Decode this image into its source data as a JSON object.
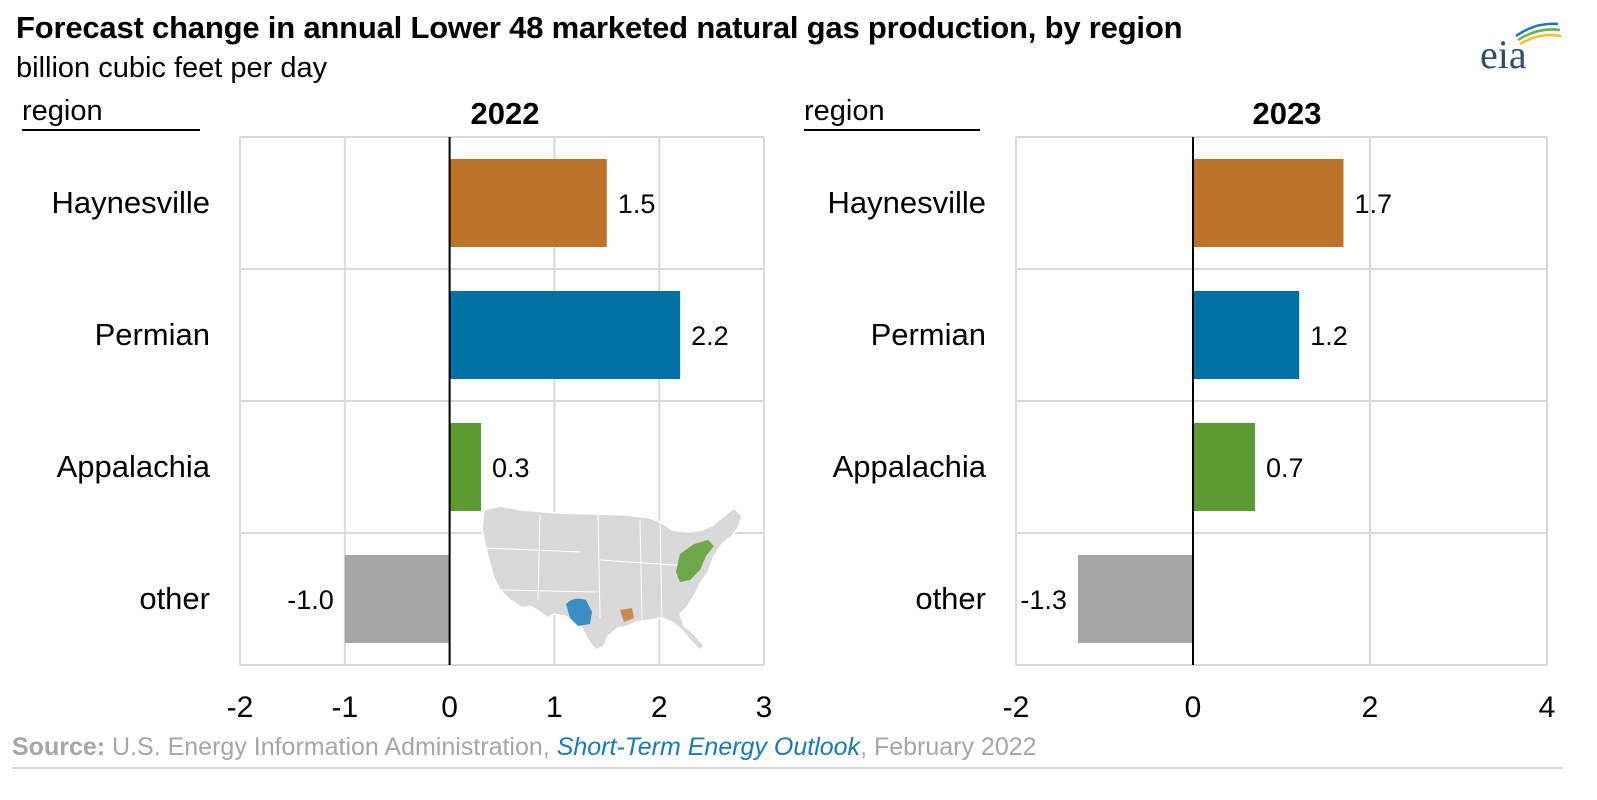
{
  "header": {
    "title": "Forecast change in annual Lower 48 marketed natural gas production, by region",
    "subtitle": "billion cubic feet per day",
    "logo_text": "eia"
  },
  "source": {
    "label": "Source:",
    "text_before": " U.S. Energy Information Administration, ",
    "link_text": "Short-Term Energy Outlook",
    "text_after": ", February 2022"
  },
  "chart_data": [
    {
      "type": "bar",
      "orientation": "horizontal",
      "title": "2022",
      "category_header": "region",
      "categories": [
        "Haynesville",
        "Permian",
        "Appalachia",
        "other"
      ],
      "values": [
        1.5,
        2.2,
        0.3,
        -1.0
      ],
      "value_labels": [
        "1.5",
        "2.2",
        "0.3",
        "-1.0"
      ],
      "colors": [
        "#bb732b",
        "#0070a3",
        "#5c9a32",
        "#a6a6a6"
      ],
      "xlim": [
        -2,
        3
      ],
      "xticks": [
        "-2",
        "-1",
        "0",
        "1",
        "2",
        "3"
      ],
      "grid": true,
      "inset": "map of Lower 48 states with Haynesville, Permian and Appalachia regions highlighted"
    },
    {
      "type": "bar",
      "orientation": "horizontal",
      "title": "2023",
      "category_header": "region",
      "categories": [
        "Haynesville",
        "Permian",
        "Appalachia",
        "other"
      ],
      "values": [
        1.7,
        1.2,
        0.7,
        -1.3
      ],
      "value_labels": [
        "1.7",
        "1.2",
        "0.7",
        "-1.3"
      ],
      "colors": [
        "#bb732b",
        "#0070a3",
        "#5c9a32",
        "#a6a6a6"
      ],
      "xlim": [
        -2,
        4
      ],
      "xticks": [
        "-2",
        "0",
        "2",
        "4"
      ],
      "grid": true
    }
  ]
}
